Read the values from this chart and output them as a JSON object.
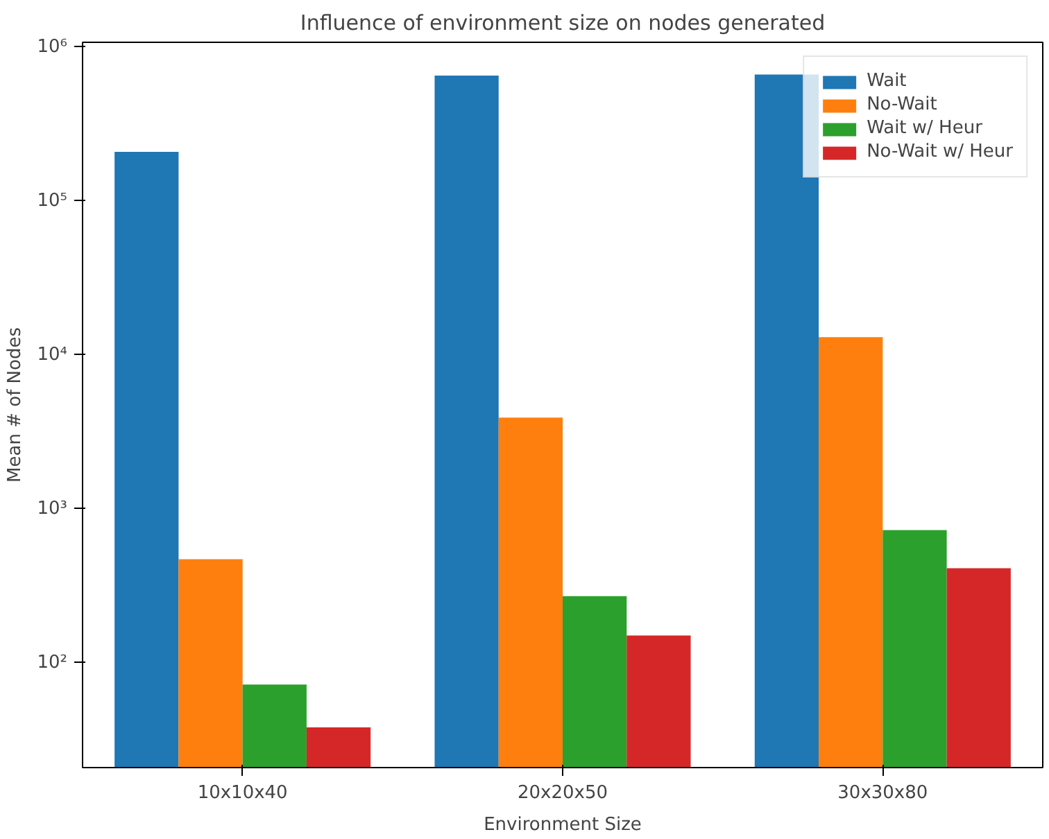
{
  "chart_data": {
    "type": "bar",
    "title": "Influence of environment size on nodes generated",
    "xlabel": "Environment Size",
    "ylabel": "Mean # of Nodes",
    "categories": [
      "10x10x40",
      "20x20x50",
      "30x30x80"
    ],
    "series": [
      {
        "name": "Wait",
        "color": "#1f77b4",
        "values": [
          208000,
          650000,
          660000
        ]
      },
      {
        "name": "No-Wait",
        "color": "#ff7f0e",
        "values": [
          470,
          3900,
          13000
        ]
      },
      {
        "name": "Wait w/ Heur",
        "color": "#2ca02c",
        "values": [
          72,
          270,
          725
        ]
      },
      {
        "name": "No-Wait w/ Heur",
        "color": "#d62728",
        "values": [
          38,
          150,
          410
        ]
      }
    ],
    "log": "y",
    "ylim": [
      20.8,
      1070000
    ],
    "yticks": [
      {
        "value": 100,
        "label": "10²"
      },
      {
        "value": 1000,
        "label": "10³"
      },
      {
        "value": 10000,
        "label": "10⁴"
      },
      {
        "value": 100000,
        "label": "10⁵"
      },
      {
        "value": 1000000,
        "label": "10⁶"
      }
    ],
    "legend": "top right",
    "grid": false
  }
}
